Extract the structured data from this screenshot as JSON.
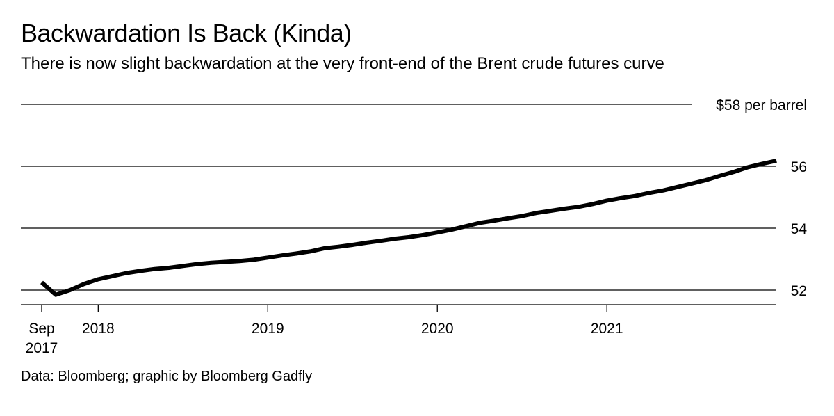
{
  "title": "Backwardation Is Back (Kinda)",
  "subtitle": "There is now slight backwardation at the very front-end of the Brent crude futures curve",
  "source": "Data: Bloomberg; graphic by Bloomberg Gadfly",
  "colors": {
    "line": "#000000",
    "grid": "#000000",
    "background": "#ffffff"
  },
  "chart_data": {
    "type": "line",
    "title": "Backwardation Is Back (Kinda)",
    "subtitle": "There is now slight backwardation at the very front-end of the Brent crude futures curve",
    "xlabel": "",
    "ylabel": "",
    "ylim": [
      51.6,
      58
    ],
    "y_ticks": [
      {
        "value": 58,
        "label": "$58 per barrel"
      },
      {
        "value": 56,
        "label": "56"
      },
      {
        "value": 54,
        "label": "54"
      },
      {
        "value": 52,
        "label": "52"
      }
    ],
    "x_start": "2017-09",
    "x_ticks": [
      {
        "month_index": 0,
        "line1": "Sep",
        "line2": "2017"
      },
      {
        "month_index": 4,
        "line1": "2018",
        "line2": ""
      },
      {
        "month_index": 16,
        "line1": "2019",
        "line2": ""
      },
      {
        "month_index": 28,
        "line1": "2020",
        "line2": ""
      },
      {
        "month_index": 40,
        "line1": "2021",
        "line2": ""
      }
    ],
    "grid": true,
    "series": [
      {
        "name": "Brent crude futures curve",
        "values": [
          52.25,
          51.85,
          52.0,
          52.2,
          52.35,
          52.45,
          52.55,
          52.62,
          52.68,
          52.72,
          52.78,
          52.84,
          52.88,
          52.91,
          52.94,
          52.98,
          53.05,
          53.12,
          53.18,
          53.25,
          53.35,
          53.4,
          53.46,
          53.53,
          53.59,
          53.66,
          53.71,
          53.78,
          53.86,
          53.95,
          54.06,
          54.17,
          54.24,
          54.32,
          54.39,
          54.49,
          54.56,
          54.63,
          54.69,
          54.78,
          54.89,
          54.97,
          55.04,
          55.14,
          55.22,
          55.33,
          55.44,
          55.55,
          55.69,
          55.82,
          55.97,
          56.08,
          56.18
        ]
      }
    ]
  }
}
